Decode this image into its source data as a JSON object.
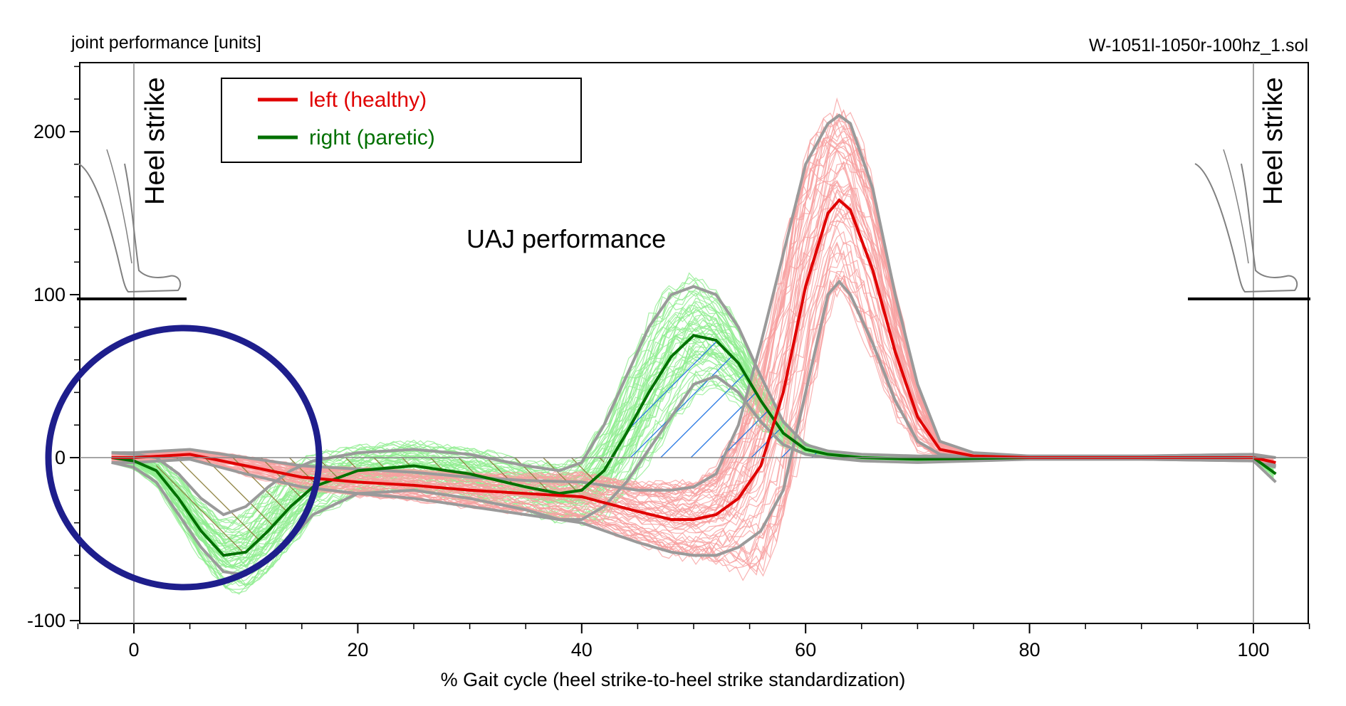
{
  "header": {
    "y_axis_title": "joint performance [units]",
    "file_name": "W-1051l-1050r-100hz_1.sol"
  },
  "annotations": {
    "heel_strike_left": "Heel strike",
    "heel_strike_right": "Heel strike",
    "plot_label": "UAJ performance"
  },
  "colors": {
    "left_mean": "#e00000",
    "left_trials": "#f7a0a0",
    "right_mean": "#007000",
    "right_trials": "#90ee90",
    "sd_band": "#9a9a9a",
    "hatch_negative": "#8b7d3a",
    "hatch_positive": "#1a6fe0",
    "circle": "#1e1e8c",
    "axis": "#000000"
  },
  "chart_data": {
    "type": "line",
    "title": "UAJ performance",
    "xlabel": "% Gait cycle (heel strike-to-heel strike standardization)",
    "ylabel": "joint performance [units]",
    "xlim": [
      -5,
      105
    ],
    "ylim": [
      -100,
      240
    ],
    "x_ticks": [
      0,
      20,
      40,
      60,
      80,
      100
    ],
    "y_ticks": [
      -100,
      0,
      100,
      200
    ],
    "legend": {
      "position": "top-left",
      "entries": [
        {
          "name": "left (healthy)",
          "color": "#e00000"
        },
        {
          "name": "right (paretic)",
          "color": "#007000"
        }
      ]
    },
    "series": [
      {
        "name": "left (healthy)",
        "color": "#e00000",
        "x": [
          -2,
          0,
          5,
          10,
          15,
          20,
          25,
          30,
          35,
          40,
          45,
          48,
          50,
          52,
          54,
          56,
          58,
          60,
          62,
          63,
          64,
          66,
          68,
          70,
          72,
          75,
          80,
          90,
          100,
          102
        ],
        "values": [
          0,
          0,
          2,
          -5,
          -12,
          -15,
          -17,
          -20,
          -22,
          -24,
          -33,
          -38,
          -38,
          -35,
          -25,
          -5,
          40,
          105,
          150,
          158,
          152,
          115,
          65,
          25,
          5,
          1,
          0,
          0,
          0,
          -3
        ],
        "sd_upper": [
          3,
          3,
          5,
          0,
          -5,
          -7,
          -9,
          -12,
          -14,
          -15,
          -20,
          -20,
          -18,
          -10,
          20,
          70,
          125,
          180,
          205,
          210,
          205,
          165,
          100,
          45,
          10,
          3,
          1,
          1,
          2,
          0
        ],
        "sd_lower": [
          -3,
          -3,
          -1,
          -10,
          -18,
          -22,
          -25,
          -30,
          -35,
          -40,
          -52,
          -58,
          -60,
          -60,
          -55,
          -45,
          -20,
          40,
          100,
          108,
          100,
          70,
          35,
          10,
          2,
          0,
          -1,
          -1,
          -2,
          -6
        ]
      },
      {
        "name": "right (paretic)",
        "color": "#007000",
        "x": [
          -2,
          0,
          2,
          4,
          6,
          8,
          10,
          12,
          14,
          16,
          20,
          25,
          30,
          35,
          38,
          40,
          42,
          44,
          46,
          48,
          50,
          52,
          54,
          56,
          58,
          60,
          62,
          65,
          70,
          80,
          90,
          100,
          102
        ],
        "values": [
          0,
          -2,
          -8,
          -25,
          -45,
          -60,
          -58,
          -45,
          -30,
          -18,
          -8,
          -5,
          -10,
          -18,
          -22,
          -20,
          -8,
          15,
          40,
          62,
          75,
          72,
          58,
          35,
          15,
          5,
          2,
          0,
          -1,
          0,
          0,
          0,
          -10
        ],
        "sd_upper": [
          3,
          2,
          0,
          -10,
          -25,
          -35,
          -30,
          -18,
          -8,
          -2,
          3,
          5,
          2,
          -5,
          -8,
          -3,
          20,
          50,
          80,
          100,
          105,
          100,
          80,
          50,
          22,
          8,
          4,
          2,
          1,
          1,
          1,
          2,
          -5
        ],
        "sd_lower": [
          -3,
          -6,
          -15,
          -35,
          -55,
          -70,
          -72,
          -62,
          -50,
          -35,
          -22,
          -20,
          -25,
          -32,
          -38,
          -38,
          -30,
          -15,
          5,
          25,
          45,
          50,
          40,
          22,
          8,
          2,
          0,
          -2,
          -3,
          -1,
          -1,
          -2,
          -15
        ]
      }
    ],
    "shaded_regions": [
      {
        "series": "right (paretic)",
        "x_range": [
          2,
          42
        ],
        "sign": "negative",
        "color": "#8b7d3a"
      },
      {
        "series": "right (paretic)",
        "x_range": [
          42,
          61
        ],
        "sign": "positive",
        "color": "#1a6fe0"
      }
    ],
    "vertical_markers": [
      0,
      100
    ],
    "highlight_circle": {
      "center": [
        4.5,
        -48
      ],
      "note": "region of interest around early stance"
    }
  }
}
